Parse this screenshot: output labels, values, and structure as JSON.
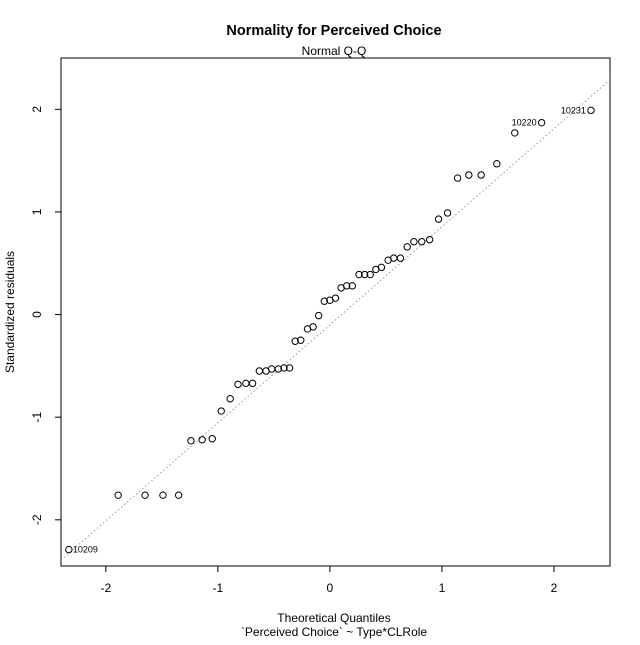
{
  "chart_data": {
    "type": "scatter",
    "title": "Normality for Perceived Choice",
    "subtitle": "Normal Q-Q",
    "xlabel": "Theoretical Quantiles",
    "xlabel_sub": "`Perceived Choice` ~ Type*CLRole",
    "ylabel": "Standardized residuals",
    "xlim": [
      -2.4,
      2.5
    ],
    "ylim": [
      -2.45,
      2.5
    ],
    "x_ticks": [
      -2,
      -1,
      0,
      1,
      2
    ],
    "y_ticks": [
      -2,
      -1,
      0,
      1,
      2
    ],
    "reference_line": {
      "style": "dotted",
      "color": "#999999",
      "points": [
        [
          -0.67,
          -0.74
        ],
        [
          0.67,
          0.54
        ]
      ]
    },
    "points": [
      {
        "x": -2.33,
        "y": -2.29,
        "label": "10209"
      },
      {
        "x": -1.89,
        "y": -1.76
      },
      {
        "x": -1.65,
        "y": -1.76
      },
      {
        "x": -1.49,
        "y": -1.76
      },
      {
        "x": -1.35,
        "y": -1.76
      },
      {
        "x": -1.24,
        "y": -1.23
      },
      {
        "x": -1.14,
        "y": -1.22
      },
      {
        "x": -1.05,
        "y": -1.21
      },
      {
        "x": -0.97,
        "y": -0.94
      },
      {
        "x": -0.89,
        "y": -0.82
      },
      {
        "x": -0.82,
        "y": -0.68
      },
      {
        "x": -0.75,
        "y": -0.67
      },
      {
        "x": -0.69,
        "y": -0.67
      },
      {
        "x": -0.63,
        "y": -0.55
      },
      {
        "x": -0.57,
        "y": -0.55
      },
      {
        "x": -0.52,
        "y": -0.53
      },
      {
        "x": -0.46,
        "y": -0.53
      },
      {
        "x": -0.41,
        "y": -0.52
      },
      {
        "x": -0.36,
        "y": -0.52
      },
      {
        "x": -0.31,
        "y": -0.26
      },
      {
        "x": -0.26,
        "y": -0.25
      },
      {
        "x": -0.2,
        "y": -0.14
      },
      {
        "x": -0.15,
        "y": -0.12
      },
      {
        "x": -0.1,
        "y": -0.01
      },
      {
        "x": -0.05,
        "y": 0.13
      },
      {
        "x": 0.0,
        "y": 0.14
      },
      {
        "x": 0.05,
        "y": 0.16
      },
      {
        "x": 0.1,
        "y": 0.26
      },
      {
        "x": 0.15,
        "y": 0.28
      },
      {
        "x": 0.2,
        "y": 0.28
      },
      {
        "x": 0.26,
        "y": 0.39
      },
      {
        "x": 0.31,
        "y": 0.39
      },
      {
        "x": 0.36,
        "y": 0.39
      },
      {
        "x": 0.41,
        "y": 0.44
      },
      {
        "x": 0.46,
        "y": 0.46
      },
      {
        "x": 0.52,
        "y": 0.53
      },
      {
        "x": 0.57,
        "y": 0.55
      },
      {
        "x": 0.63,
        "y": 0.55
      },
      {
        "x": 0.69,
        "y": 0.66
      },
      {
        "x": 0.75,
        "y": 0.71
      },
      {
        "x": 0.82,
        "y": 0.71
      },
      {
        "x": 0.89,
        "y": 0.73
      },
      {
        "x": 0.97,
        "y": 0.93
      },
      {
        "x": 1.05,
        "y": 0.99
      },
      {
        "x": 1.14,
        "y": 1.33
      },
      {
        "x": 1.24,
        "y": 1.36
      },
      {
        "x": 1.35,
        "y": 1.36
      },
      {
        "x": 1.49,
        "y": 1.47
      },
      {
        "x": 1.65,
        "y": 1.77
      },
      {
        "x": 1.89,
        "y": 1.87,
        "label": "10220"
      },
      {
        "x": 2.33,
        "y": 1.99,
        "label": "10231"
      }
    ]
  }
}
